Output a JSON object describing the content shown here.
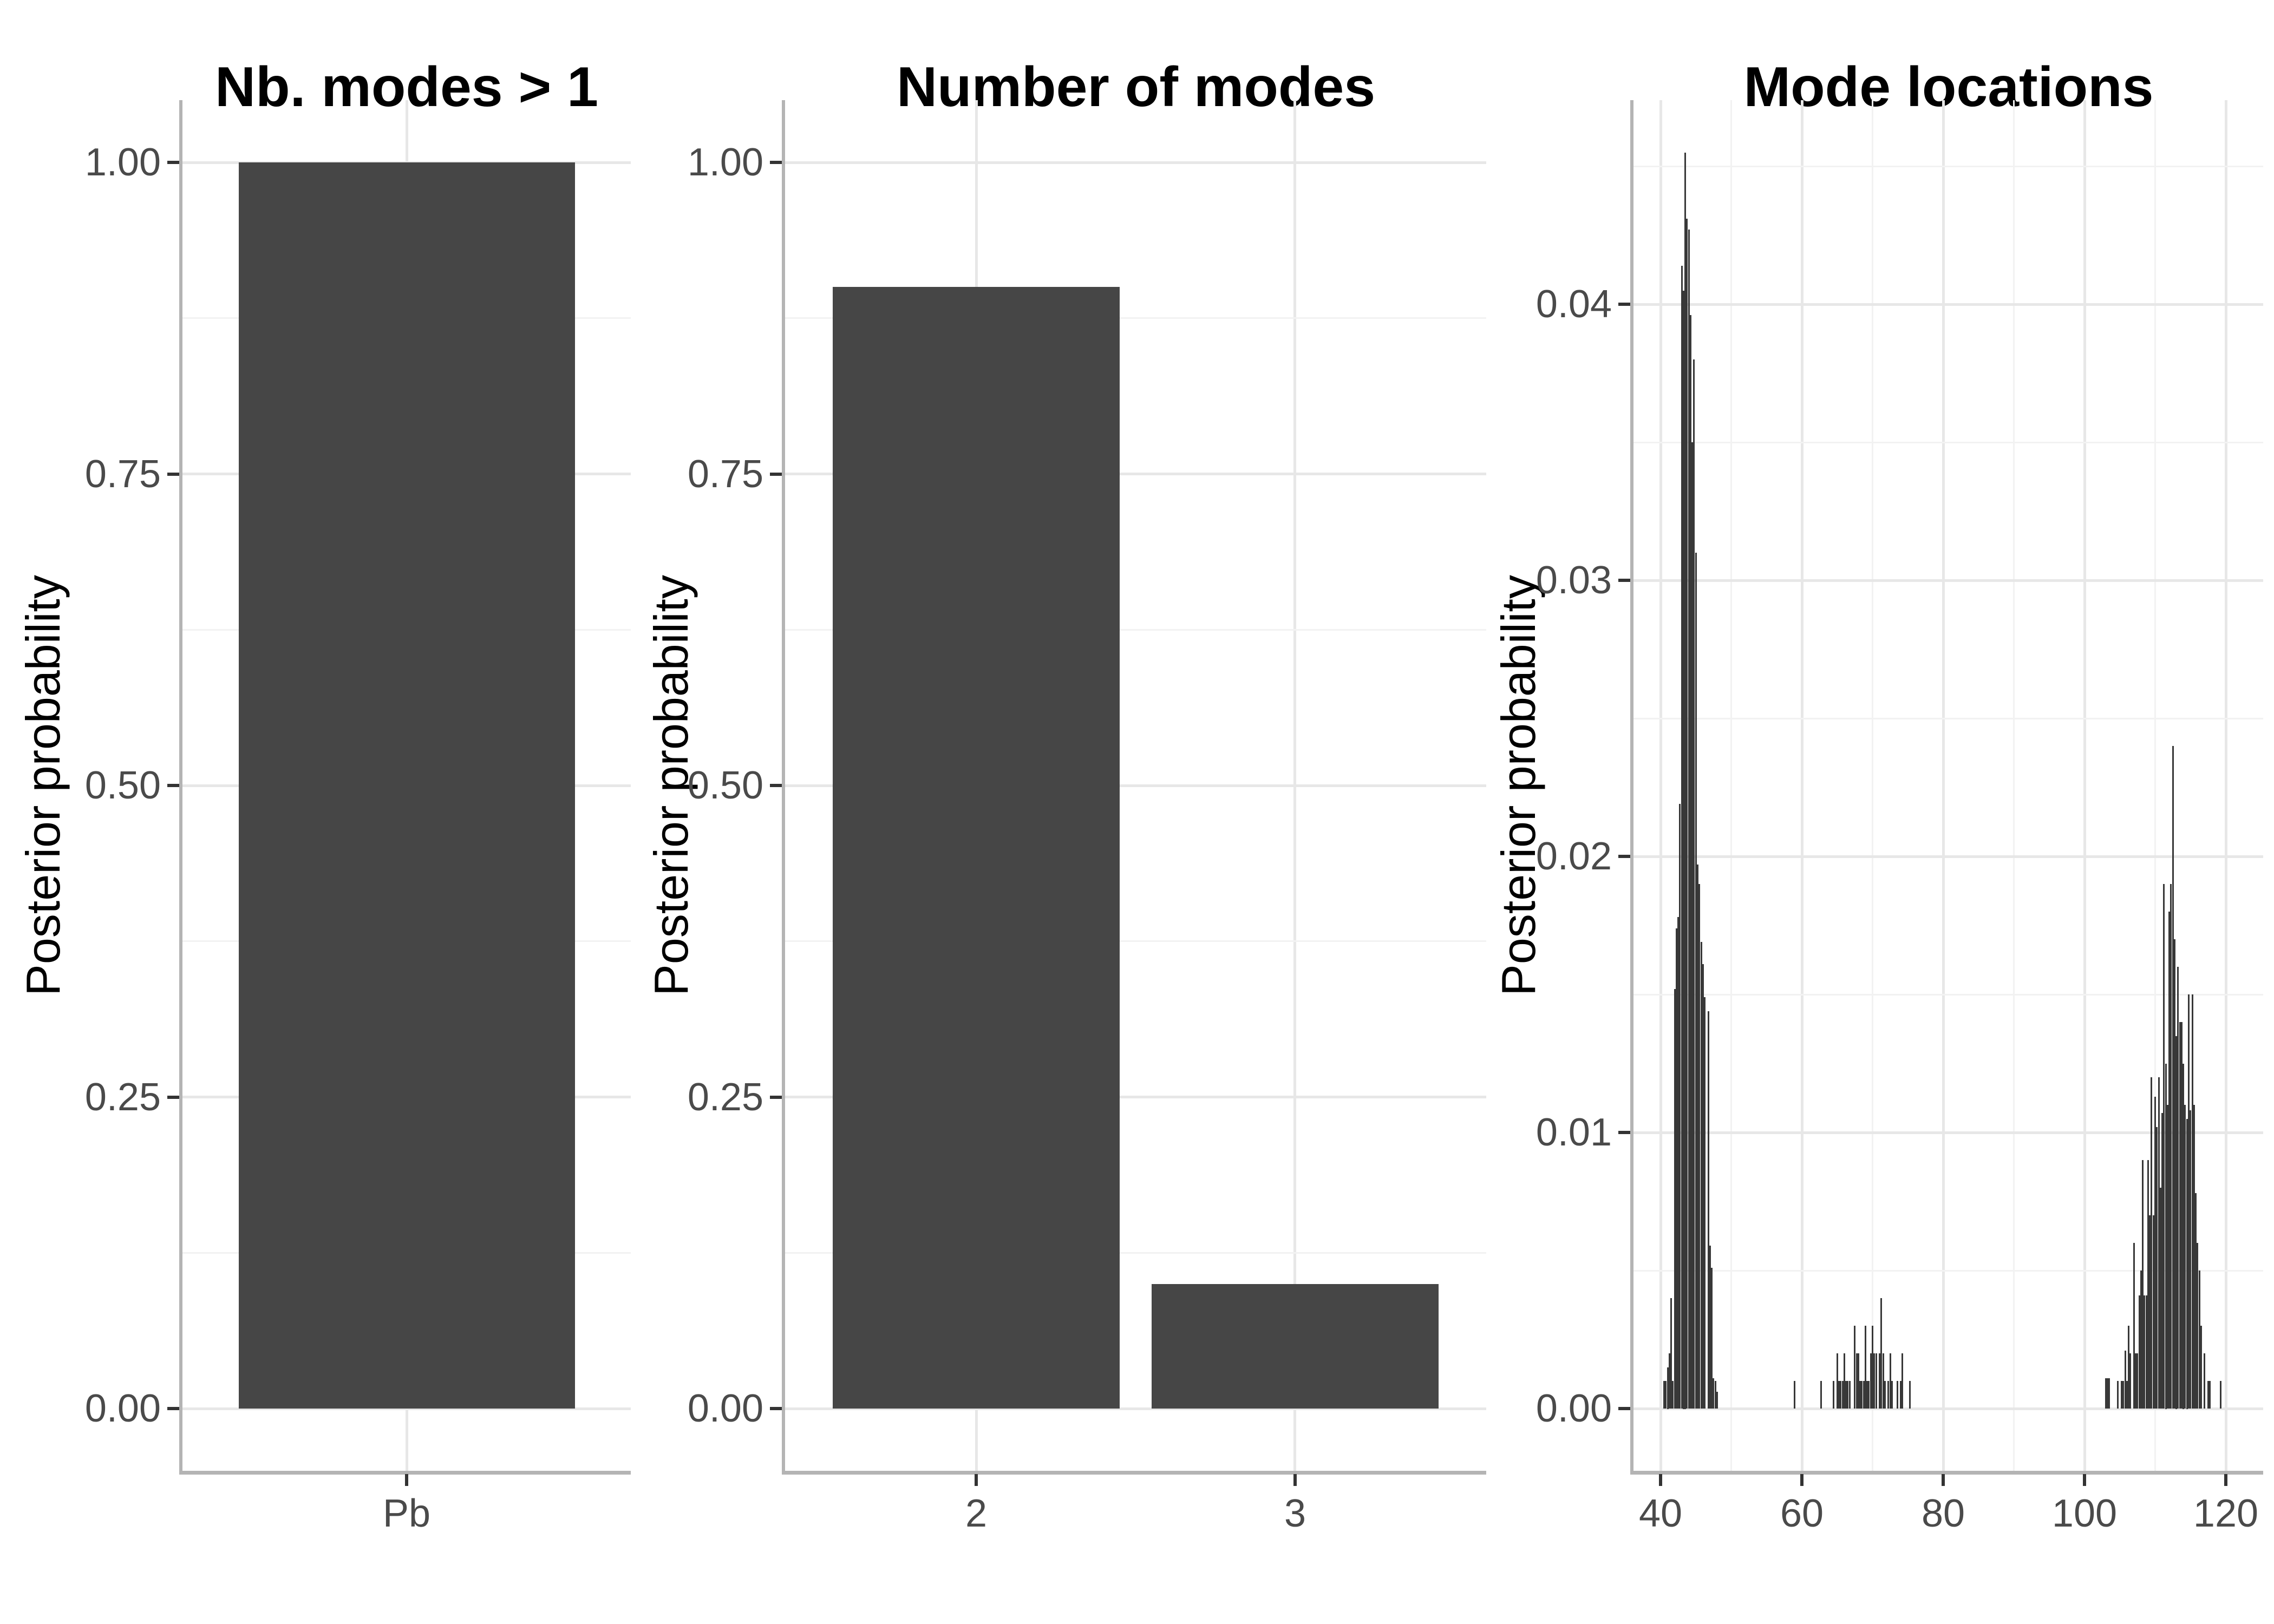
{
  "figure": {
    "background": "#ffffff"
  },
  "colors": {
    "bar_fill": "#464646",
    "spike": "#383838",
    "grid_major": "#e7e7e7",
    "grid_minor": "#f2f2f2",
    "axis_line": "#b4b4b4",
    "tick_mark": "#333333",
    "tick_label": "#4a4a4a",
    "title": "#000000"
  },
  "panels": [
    {
      "title": "Nb. modes > 1",
      "y_axis_title": "Posterior probability",
      "y_tick_labels": [
        "1.00",
        "0.75",
        "0.50",
        "0.25",
        "0.00"
      ],
      "x_tick_labels": [
        "Pb"
      ]
    },
    {
      "title": "Number of modes",
      "y_axis_title": "Posterior probability",
      "y_tick_labels": [
        "1.00",
        "0.75",
        "0.50",
        "0.25",
        "0.00"
      ],
      "x_tick_labels": [
        "2",
        "3"
      ]
    },
    {
      "title": "Mode locations",
      "y_axis_title": "Posterior probability",
      "y_tick_labels": [
        "0.04",
        "0.03",
        "0.02",
        "0.01",
        "0.00"
      ],
      "x_tick_labels": [
        "40",
        "60",
        "80",
        "100",
        "120"
      ]
    }
  ],
  "chart_data": [
    {
      "type": "bar",
      "title": "Nb. modes > 1",
      "xlabel": "",
      "ylabel": "Posterior probability",
      "categories": [
        "Pb"
      ],
      "values": [
        1.0
      ],
      "yticks": [
        0,
        0.25,
        0.5,
        0.75,
        1.0
      ],
      "ylim": [
        0,
        1.05
      ],
      "grid": true,
      "legend": false
    },
    {
      "type": "bar",
      "title": "Number of modes",
      "xlabel": "",
      "ylabel": "Posterior probability",
      "categories": [
        "2",
        "3"
      ],
      "values": [
        0.9,
        0.1
      ],
      "yticks": [
        0,
        0.25,
        0.5,
        0.75,
        1.0
      ],
      "ylim": [
        0,
        1.05
      ],
      "grid": true,
      "legend": false
    },
    {
      "type": "bar",
      "subtype": "spike-histogram",
      "title": "Mode locations",
      "xlabel": "",
      "ylabel": "Posterior probability",
      "xticks": [
        40,
        60,
        80,
        100,
        120
      ],
      "xticks_minor": [
        50,
        70,
        90,
        110
      ],
      "yticks": [
        0,
        0.01,
        0.02,
        0.03,
        0.04
      ],
      "xlim": [
        36.2,
        121.3
      ],
      "ylim": [
        0,
        0.0474
      ],
      "grid": true,
      "legend": false,
      "spikes": [
        [
          40.5,
          0.001
        ],
        [
          40.75,
          0.001
        ],
        [
          41.0,
          0.0015
        ],
        [
          41.25,
          0.002
        ],
        [
          41.5,
          0.004
        ],
        [
          41.75,
          0.001
        ],
        [
          42.0,
          0.0152
        ],
        [
          42.25,
          0.0174
        ],
        [
          42.5,
          0.0178
        ],
        [
          42.75,
          0.0219
        ],
        [
          43.0,
          0.0414
        ],
        [
          43.25,
          0.0405
        ],
        [
          43.5,
          0.0455
        ],
        [
          43.75,
          0.0431
        ],
        [
          44.0,
          0.0427
        ],
        [
          44.25,
          0.0396
        ],
        [
          44.5,
          0.035
        ],
        [
          44.75,
          0.038
        ],
        [
          45.0,
          0.031
        ],
        [
          45.25,
          0.0197
        ],
        [
          45.5,
          0.019
        ],
        [
          45.75,
          0.0169
        ],
        [
          46.0,
          0.0161
        ],
        [
          46.25,
          0.0149
        ],
        [
          46.75,
          0.0144
        ],
        [
          47.0,
          0.0059
        ],
        [
          47.25,
          0.0051
        ],
        [
          47.5,
          0.0011
        ],
        [
          47.75,
          0.001
        ],
        [
          48.0,
          0.0006
        ],
        [
          59.0,
          0.001
        ],
        [
          62.75,
          0.001
        ],
        [
          64.5,
          0.001
        ],
        [
          65.0,
          0.002
        ],
        [
          65.25,
          0.001
        ],
        [
          65.5,
          0.001
        ],
        [
          65.75,
          0.001
        ],
        [
          66.0,
          0.002
        ],
        [
          66.25,
          0.001
        ],
        [
          66.5,
          0.001
        ],
        [
          66.75,
          0.001
        ],
        [
          67.5,
          0.003
        ],
        [
          67.75,
          0.002
        ],
        [
          68.0,
          0.002
        ],
        [
          68.25,
          0.001
        ],
        [
          68.5,
          0.001
        ],
        [
          68.75,
          0.001
        ],
        [
          69.0,
          0.003
        ],
        [
          69.25,
          0.001
        ],
        [
          69.5,
          0.001
        ],
        [
          69.75,
          0.002
        ],
        [
          70.0,
          0.003
        ],
        [
          70.25,
          0.002
        ],
        [
          70.5,
          0.002
        ],
        [
          71.0,
          0.002
        ],
        [
          71.25,
          0.004
        ],
        [
          71.5,
          0.002
        ],
        [
          71.75,
          0.001
        ],
        [
          72.25,
          0.001
        ],
        [
          72.5,
          0.002
        ],
        [
          72.75,
          0.001
        ],
        [
          73.5,
          0.001
        ],
        [
          74.0,
          0.001
        ],
        [
          74.25,
          0.002
        ],
        [
          75.25,
          0.001
        ],
        [
          103.0,
          0.0011
        ],
        [
          103.25,
          0.0011
        ],
        [
          103.5,
          0.0011
        ],
        [
          104.75,
          0.001
        ],
        [
          105.25,
          0.001
        ],
        [
          105.5,
          0.001
        ],
        [
          105.75,
          0.0021
        ],
        [
          106.0,
          0.001
        ],
        [
          106.25,
          0.003
        ],
        [
          106.5,
          0.002
        ],
        [
          107.0,
          0.006
        ],
        [
          107.25,
          0.002
        ],
        [
          107.5,
          0.002
        ],
        [
          107.75,
          0.0041
        ],
        [
          108.0,
          0.005
        ],
        [
          108.25,
          0.009
        ],
        [
          108.5,
          0.0041
        ],
        [
          108.75,
          0.0041
        ],
        [
          109.0,
          0.009
        ],
        [
          109.25,
          0.007
        ],
        [
          109.5,
          0.012
        ],
        [
          109.75,
          0.007
        ],
        [
          110.0,
          0.0113
        ],
        [
          110.25,
          0.0102
        ],
        [
          110.5,
          0.012
        ],
        [
          110.75,
          0.008
        ],
        [
          111.0,
          0.0107
        ],
        [
          111.25,
          0.019
        ],
        [
          111.5,
          0.0125
        ],
        [
          111.75,
          0.011
        ],
        [
          112.0,
          0.018
        ],
        [
          112.25,
          0.019
        ],
        [
          112.5,
          0.024
        ],
        [
          112.75,
          0.017
        ],
        [
          113.0,
          0.0135
        ],
        [
          113.25,
          0.016
        ],
        [
          113.5,
          0.014
        ],
        [
          113.75,
          0.014
        ],
        [
          114.0,
          0.0125
        ],
        [
          114.25,
          0.011
        ],
        [
          114.5,
          0.0105
        ],
        [
          114.75,
          0.015
        ],
        [
          115.0,
          0.0108
        ],
        [
          115.25,
          0.015
        ],
        [
          115.5,
          0.011
        ],
        [
          115.75,
          0.0078
        ],
        [
          116.0,
          0.006
        ],
        [
          116.25,
          0.005
        ],
        [
          116.5,
          0.003
        ],
        [
          117.0,
          0.002
        ],
        [
          117.5,
          0.001
        ],
        [
          117.75,
          0.001
        ],
        [
          119.25,
          0.001
        ]
      ]
    }
  ]
}
